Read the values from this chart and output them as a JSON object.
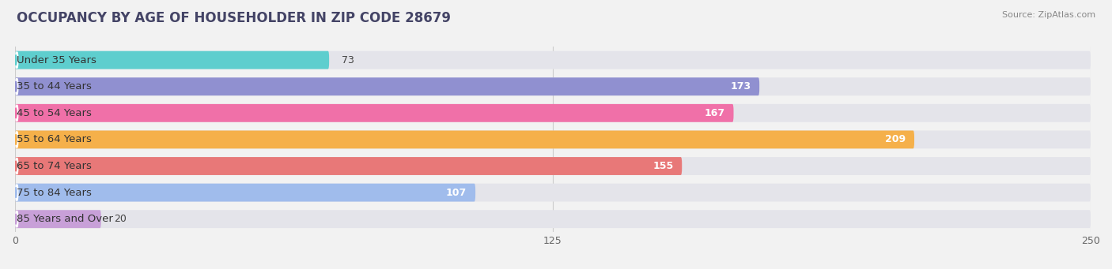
{
  "title": "OCCUPANCY BY AGE OF HOUSEHOLDER IN ZIP CODE 28679",
  "source": "Source: ZipAtlas.com",
  "categories": [
    "Under 35 Years",
    "35 to 44 Years",
    "45 to 54 Years",
    "55 to 64 Years",
    "65 to 74 Years",
    "75 to 84 Years",
    "85 Years and Over"
  ],
  "values": [
    73,
    173,
    167,
    209,
    155,
    107,
    20
  ],
  "bar_colors": [
    "#5ECECE",
    "#9090D0",
    "#F070A8",
    "#F5B04A",
    "#E87878",
    "#A0BCEC",
    "#C8A0D8"
  ],
  "xlim": [
    0,
    250
  ],
  "xticks": [
    0,
    125,
    250
  ],
  "bar_height": 0.68,
  "background_color": "#f2f2f2",
  "bar_bg_color": "#e4e4ea",
  "title_fontsize": 12,
  "label_fontsize": 9.5,
  "value_fontsize": 9
}
